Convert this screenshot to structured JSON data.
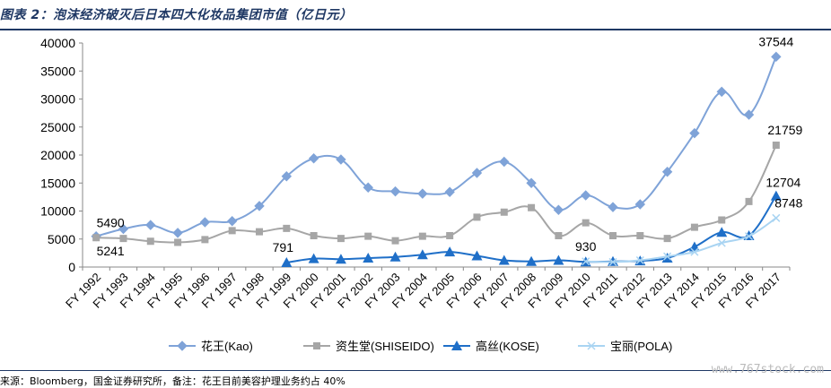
{
  "title": "图表 2：泡沫经济破灭后日本四大化妆品集团市值（亿日元）",
  "source": "来源：Bloomberg，国金证券研究所，备注：花王目前美容护理业务约占 40%",
  "watermark": "www.767stock.com",
  "chart_data": {
    "type": "line",
    "title": "图表 2：泡沫经济破灭后日本四大化妆品集团市值（亿日元）",
    "ylim": [
      0,
      40000
    ],
    "yticks": [
      0,
      5000,
      10000,
      15000,
      20000,
      25000,
      30000,
      35000,
      40000
    ],
    "grid": false,
    "legend_position": "bottom",
    "categories": [
      "FY 1992",
      "FY 1993",
      "FY 1994",
      "FY 1995",
      "FY 1996",
      "FY 1997",
      "FY 1998",
      "FY 1999",
      "FY 2000",
      "FY 2001",
      "FY 2002",
      "FY 2003",
      "FY 2004",
      "FY 2005",
      "FY 2006",
      "FY 2007",
      "FY 2008",
      "FY 2009",
      "FY 2010",
      "FY 2011",
      "FY 2012",
      "FY 2013",
      "FY 2014",
      "FY 2015",
      "FY 2016",
      "FY 2017"
    ],
    "series": [
      {
        "name": "花王(Kao)",
        "color": "#7fa3d8",
        "marker": "diamond",
        "values": [
          5490,
          6800,
          7500,
          6100,
          8000,
          8200,
          10900,
          16200,
          19400,
          19200,
          14200,
          13500,
          13100,
          13400,
          16800,
          18800,
          15000,
          10200,
          12800,
          10700,
          11200,
          17000,
          23900,
          31300,
          27200,
          37544
        ]
      },
      {
        "name": "资生堂(SHISEIDO)",
        "color": "#a6a6a6",
        "marker": "square",
        "values": [
          5241,
          5100,
          4600,
          4400,
          4900,
          6500,
          6300,
          6900,
          5600,
          5100,
          5500,
          4700,
          5500,
          5600,
          8900,
          9800,
          10600,
          5600,
          7900,
          5600,
          5600,
          5100,
          7100,
          8400,
          11700,
          21759
        ]
      },
      {
        "name": "高丝(KOSE)",
        "color": "#1f6fc8",
        "marker": "triangle",
        "values": [
          null,
          null,
          null,
          null,
          null,
          null,
          null,
          791,
          1500,
          1400,
          1600,
          1800,
          2200,
          2700,
          2000,
          1200,
          1000,
          1200,
          930,
          1000,
          1100,
          1600,
          3600,
          6200,
          5600,
          12704
        ]
      },
      {
        "name": "宝丽(POLA)",
        "color": "#a9d4f2",
        "marker": "x",
        "values": [
          null,
          null,
          null,
          null,
          null,
          null,
          null,
          null,
          null,
          null,
          null,
          null,
          null,
          null,
          null,
          null,
          null,
          null,
          1000,
          900,
          1200,
          1900,
          2700,
          4300,
          5500,
          8748
        ]
      }
    ],
    "data_labels": [
      {
        "series": 0,
        "index": 0,
        "text": "5490"
      },
      {
        "series": 1,
        "index": 0,
        "text": "5241"
      },
      {
        "series": 2,
        "index": 7,
        "text": "791"
      },
      {
        "series": 2,
        "index": 18,
        "text": "930"
      },
      {
        "series": 0,
        "index": 25,
        "text": "37544"
      },
      {
        "series": 1,
        "index": 25,
        "text": "21759"
      },
      {
        "series": 2,
        "index": 25,
        "text": "12704"
      },
      {
        "series": 3,
        "index": 25,
        "text": "8748"
      }
    ]
  }
}
